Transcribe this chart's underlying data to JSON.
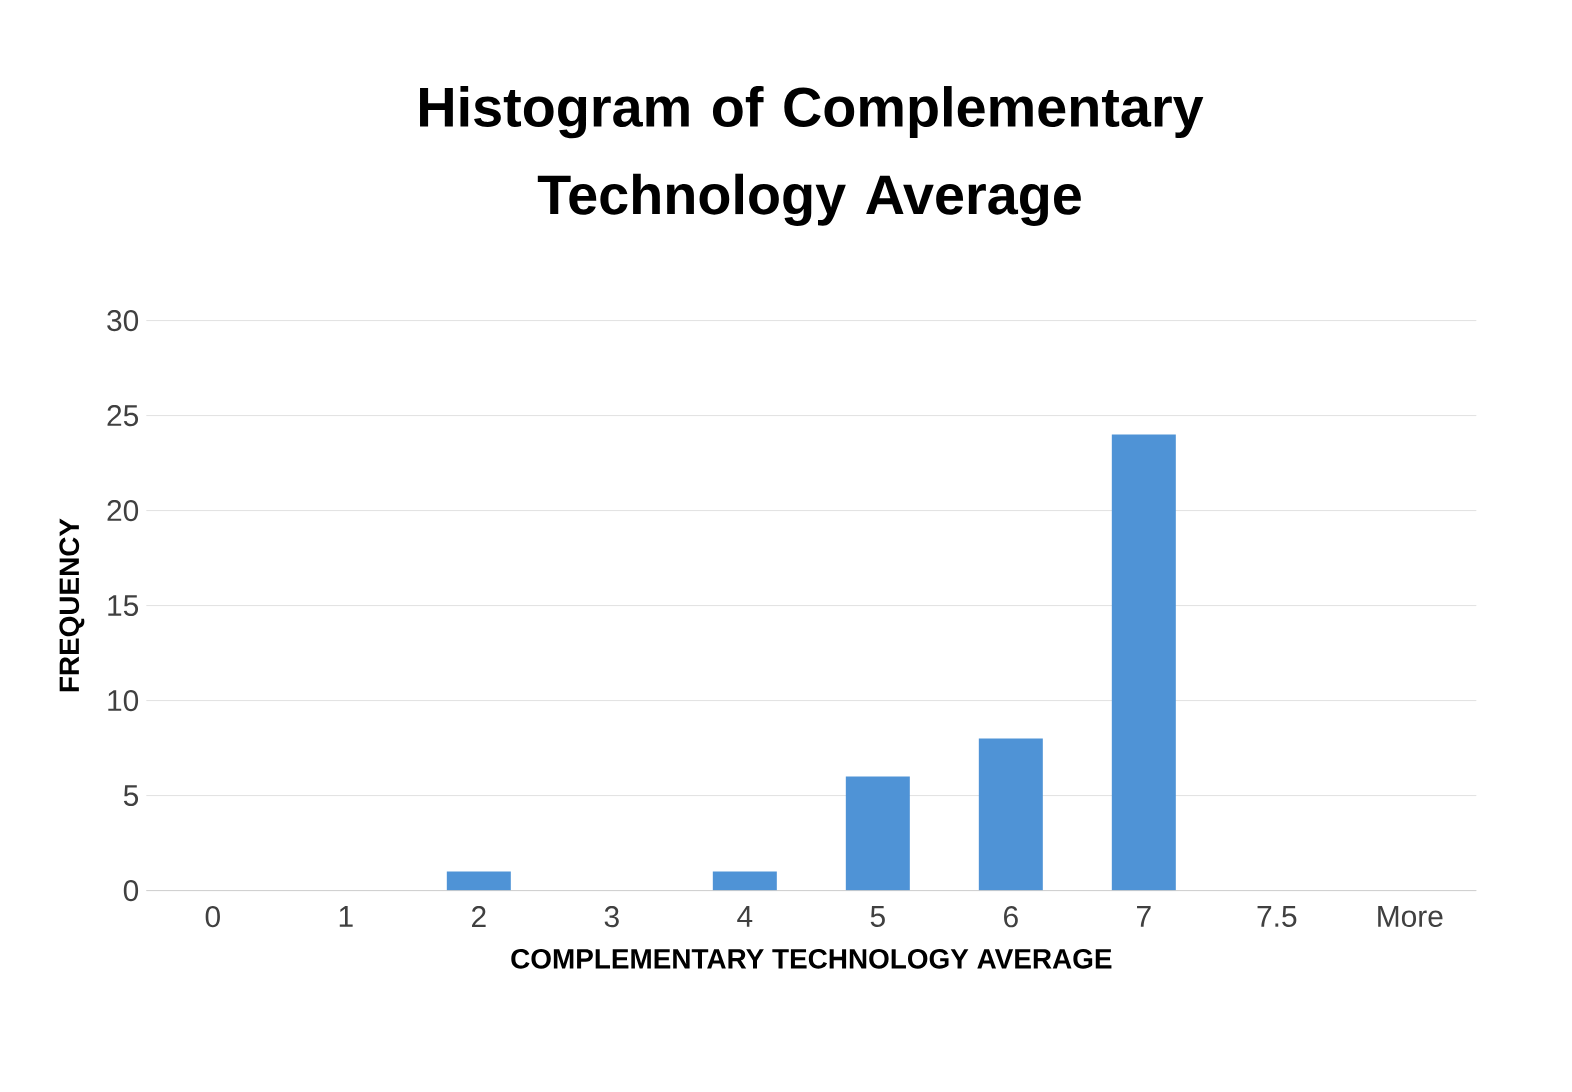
{
  "chart_data": {
    "type": "bar",
    "title": "Histogram of Complementary Technology Average",
    "xlabel": "COMPLEMENTARY TECHNOLOGY AVERAGE",
    "ylabel": "FREQUENCY",
    "categories": [
      "0",
      "1",
      "2",
      "3",
      "4",
      "5",
      "6",
      "7",
      "7.5",
      "More"
    ],
    "values": [
      0,
      0,
      1,
      0,
      1,
      6,
      8,
      24,
      0,
      0
    ],
    "color": "#4f93d6",
    "ylim": [
      0,
      30
    ],
    "yticks": [
      0,
      5,
      10,
      15,
      20,
      25,
      30
    ],
    "grid": "y"
  }
}
